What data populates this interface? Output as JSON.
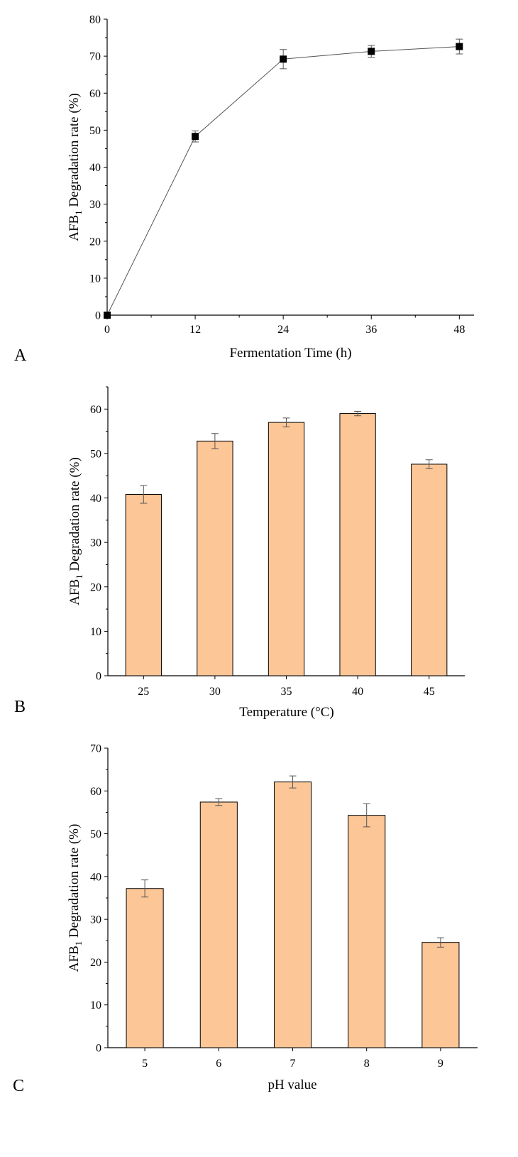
{
  "chart_data": [
    {
      "panel": "A",
      "type": "line",
      "x": [
        0,
        12,
        24,
        36,
        48
      ],
      "values": [
        0,
        48.3,
        69.2,
        71.3,
        72.6
      ],
      "errors": [
        0,
        1.5,
        2.6,
        1.6,
        2.0
      ],
      "xticks": [
        "0",
        "12",
        "24",
        "36",
        "48"
      ],
      "xlim": [
        0,
        50
      ],
      "ylim": [
        0,
        80
      ],
      "yticks": [
        "0",
        "10",
        "20",
        "30",
        "40",
        "50",
        "60",
        "70",
        "80"
      ],
      "xlabel": "Fermentation Time (h)",
      "ylabel_main": "AFB",
      "ylabel_sub": "1",
      "ylabel_rest": " Degradation rate (%)",
      "marker_color": "#000000"
    },
    {
      "panel": "B",
      "type": "bar",
      "categories": [
        "25",
        "30",
        "35",
        "40",
        "45"
      ],
      "values": [
        40.8,
        52.8,
        57.0,
        59.0,
        47.6
      ],
      "errors": [
        2.0,
        1.7,
        1.0,
        0.5,
        1.0
      ],
      "ylim": [
        0,
        65
      ],
      "yticks": [
        "0",
        "10",
        "20",
        "30",
        "40",
        "50",
        "60"
      ],
      "xlabel": "Temperature (°C)",
      "ylabel_main": "AFB",
      "ylabel_sub": "1",
      "ylabel_rest": " Degradation rate (%)",
      "bar_color": "#fdc697"
    },
    {
      "panel": "C",
      "type": "bar",
      "categories": [
        "5",
        "6",
        "7",
        "8",
        "9"
      ],
      "values": [
        37.2,
        57.4,
        62.1,
        54.3,
        24.6
      ],
      "errors": [
        2.0,
        0.8,
        1.4,
        2.7,
        1.1
      ],
      "ylim": [
        0,
        70
      ],
      "yticks": [
        "0",
        "10",
        "20",
        "30",
        "40",
        "50",
        "60",
        "70"
      ],
      "xlabel": "pH value",
      "ylabel_main": "AFB",
      "ylabel_sub": "1",
      "ylabel_rest": " Degradation rate (%)",
      "bar_color": "#fdc697"
    }
  ]
}
